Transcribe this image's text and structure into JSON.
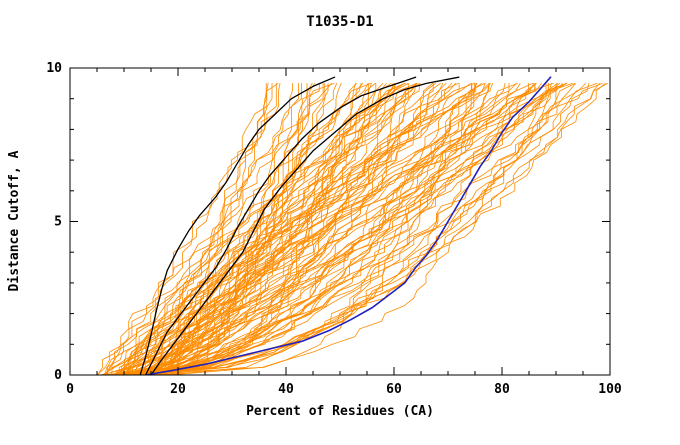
{
  "chart_data": {
    "type": "line",
    "title": "T1035-D1",
    "xlabel": "Percent of Residues (CA)",
    "ylabel": "Distance Cutoff, A",
    "xlim": [
      0,
      100
    ],
    "ylim": [
      0,
      10
    ],
    "x_ticks": [
      0,
      20,
      40,
      60,
      80,
      100
    ],
    "y_ticks": [
      0,
      5,
      10
    ],
    "x_minor_step": 5,
    "y_minor_step": 1,
    "grid": false,
    "legend": "none",
    "series": [
      {
        "name": "reference-model-1",
        "color": "#000000",
        "width": 1.3,
        "points": [
          [
            13,
            0
          ],
          [
            14,
            0.6
          ],
          [
            15,
            1.3
          ],
          [
            16,
            2.1
          ],
          [
            17,
            2.8
          ],
          [
            18,
            3.4
          ],
          [
            20,
            4.1
          ],
          [
            22,
            4.7
          ],
          [
            24,
            5.2
          ],
          [
            27,
            5.8
          ],
          [
            29,
            6.3
          ],
          [
            31,
            6.9
          ],
          [
            33,
            7.5
          ],
          [
            35,
            8.0
          ],
          [
            38,
            8.5
          ],
          [
            41,
            9.0
          ],
          [
            45,
            9.4
          ],
          [
            49,
            9.7
          ]
        ]
      },
      {
        "name": "reference-model-2",
        "color": "#000000",
        "width": 1.3,
        "points": [
          [
            14,
            0
          ],
          [
            16,
            0.7
          ],
          [
            18,
            1.4
          ],
          [
            21,
            2.1
          ],
          [
            24,
            2.8
          ],
          [
            27,
            3.5
          ],
          [
            29,
            4.1
          ],
          [
            31,
            4.8
          ],
          [
            33,
            5.4
          ],
          [
            35,
            6.0
          ],
          [
            37,
            6.5
          ],
          [
            40,
            7.1
          ],
          [
            43,
            7.7
          ],
          [
            46,
            8.2
          ],
          [
            50,
            8.7
          ],
          [
            54,
            9.1
          ],
          [
            59,
            9.4
          ],
          [
            64,
            9.7
          ]
        ]
      },
      {
        "name": "reference-model-3",
        "color": "#000000",
        "width": 1.3,
        "points": [
          [
            15,
            0
          ],
          [
            17,
            0.5
          ],
          [
            20,
            1.2
          ],
          [
            23,
            1.9
          ],
          [
            26,
            2.6
          ],
          [
            29,
            3.3
          ],
          [
            32,
            4.0
          ],
          [
            34,
            4.7
          ],
          [
            36,
            5.4
          ],
          [
            39,
            6.1
          ],
          [
            42,
            6.7
          ],
          [
            45,
            7.3
          ],
          [
            49,
            7.9
          ],
          [
            53,
            8.5
          ],
          [
            58,
            9.0
          ],
          [
            62,
            9.3
          ],
          [
            66,
            9.5
          ],
          [
            72,
            9.7
          ]
        ]
      },
      {
        "name": "highlighted-model",
        "color": "#2222bb",
        "width": 1.6,
        "points": [
          [
            14,
            0
          ],
          [
            19,
            0.15
          ],
          [
            25,
            0.35
          ],
          [
            31,
            0.6
          ],
          [
            37,
            0.85
          ],
          [
            43,
            1.1
          ],
          [
            48,
            1.45
          ],
          [
            52,
            1.8
          ],
          [
            56,
            2.2
          ],
          [
            59,
            2.6
          ],
          [
            62,
            3.0
          ],
          [
            64,
            3.5
          ],
          [
            66,
            3.9
          ],
          [
            68,
            4.4
          ],
          [
            70,
            5.0
          ],
          [
            72,
            5.6
          ],
          [
            74,
            6.2
          ],
          [
            76,
            6.8
          ],
          [
            78,
            7.3
          ],
          [
            80,
            7.9
          ],
          [
            82,
            8.4
          ],
          [
            85,
            8.9
          ],
          [
            87,
            9.3
          ],
          [
            89,
            9.7
          ]
        ]
      }
    ],
    "ensemble": {
      "name": "server-model-curves",
      "color": "#ff8c00",
      "width": 0.8,
      "count": 110,
      "seed": 12,
      "x_start_range": [
        5,
        18
      ],
      "x_end_range": [
        35,
        100
      ],
      "shape_range": [
        0.28,
        1.3
      ],
      "y_max": 9.7,
      "y_step": 0.25,
      "jitter": 3
    }
  },
  "layout_colors": {
    "background": "#ffffff",
    "axis": "#000000",
    "ensemble": "#ff8c00",
    "highlight": "#2222bb",
    "reference": "#000000"
  }
}
